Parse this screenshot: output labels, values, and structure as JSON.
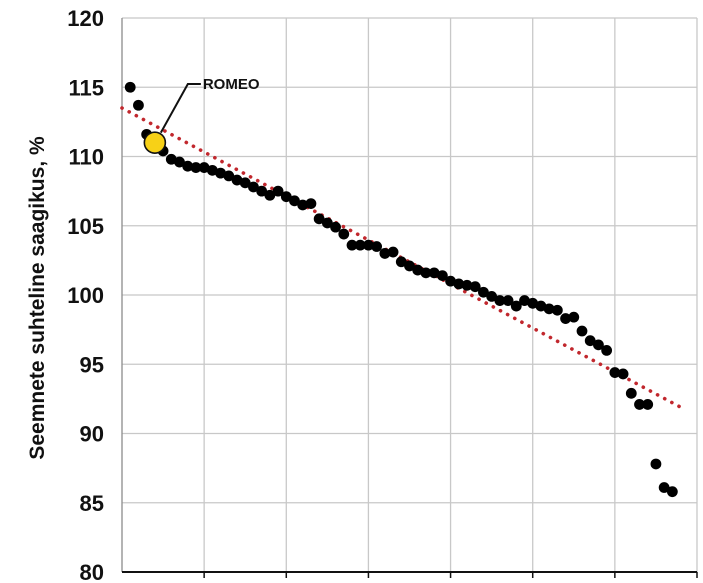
{
  "chart_data": {
    "type": "scatter",
    "ylabel": "Seemnete suhteline saagikus, %",
    "xlabel": "",
    "title": "",
    "ylim": [
      80,
      120
    ],
    "yticks": [
      80,
      85,
      90,
      95,
      100,
      105,
      110,
      115,
      120
    ],
    "xlim": [
      0,
      70
    ],
    "grid": true,
    "series": [
      {
        "color": "#000000",
        "points": [
          [
            1,
            115.0
          ],
          [
            2,
            113.7
          ],
          [
            3,
            111.6
          ],
          [
            4,
            111.0
          ],
          [
            5,
            110.4
          ],
          [
            6,
            109.8
          ],
          [
            7,
            109.6
          ],
          [
            8,
            109.3
          ],
          [
            9,
            109.2
          ],
          [
            10,
            109.2
          ],
          [
            11,
            109.0
          ],
          [
            12,
            108.8
          ],
          [
            13,
            108.6
          ],
          [
            14,
            108.3
          ],
          [
            15,
            108.1
          ],
          [
            16,
            107.8
          ],
          [
            17,
            107.5
          ],
          [
            18,
            107.2
          ],
          [
            19,
            107.5
          ],
          [
            20,
            107.1
          ],
          [
            21,
            106.8
          ],
          [
            22,
            106.5
          ],
          [
            23,
            106.6
          ],
          [
            24,
            105.5
          ],
          [
            25,
            105.2
          ],
          [
            26,
            104.9
          ],
          [
            27,
            104.4
          ],
          [
            28,
            103.6
          ],
          [
            29,
            103.6
          ],
          [
            30,
            103.6
          ],
          [
            31,
            103.5
          ],
          [
            32,
            103.0
          ],
          [
            33,
            103.1
          ],
          [
            34,
            102.4
          ],
          [
            35,
            102.1
          ],
          [
            36,
            101.8
          ],
          [
            37,
            101.6
          ],
          [
            38,
            101.6
          ],
          [
            39,
            101.4
          ],
          [
            40,
            101.0
          ],
          [
            41,
            100.8
          ],
          [
            42,
            100.7
          ],
          [
            43,
            100.6
          ],
          [
            44,
            100.2
          ],
          [
            45,
            99.9
          ],
          [
            46,
            99.6
          ],
          [
            47,
            99.6
          ],
          [
            48,
            99.2
          ],
          [
            49,
            99.6
          ],
          [
            50,
            99.4
          ],
          [
            51,
            99.2
          ],
          [
            52,
            99.0
          ],
          [
            53,
            98.9
          ],
          [
            54,
            98.3
          ],
          [
            55,
            98.4
          ],
          [
            56,
            97.4
          ],
          [
            57,
            96.7
          ],
          [
            58,
            96.4
          ],
          [
            59,
            96.0
          ],
          [
            60,
            94.4
          ],
          [
            61,
            94.3
          ],
          [
            62,
            92.9
          ],
          [
            63,
            92.1
          ],
          [
            64,
            92.1
          ],
          [
            65,
            87.8
          ],
          [
            66,
            86.1
          ],
          [
            67,
            85.8
          ]
        ]
      }
    ],
    "highlight": {
      "label": "ROMEO",
      "x": 4,
      "y": 111.0,
      "color": "#f7d117"
    },
    "trendline": {
      "style": "dotted",
      "color": "#c1272d",
      "start": [
        0,
        113.5
      ],
      "end": [
        68,
        91.9
      ]
    }
  }
}
